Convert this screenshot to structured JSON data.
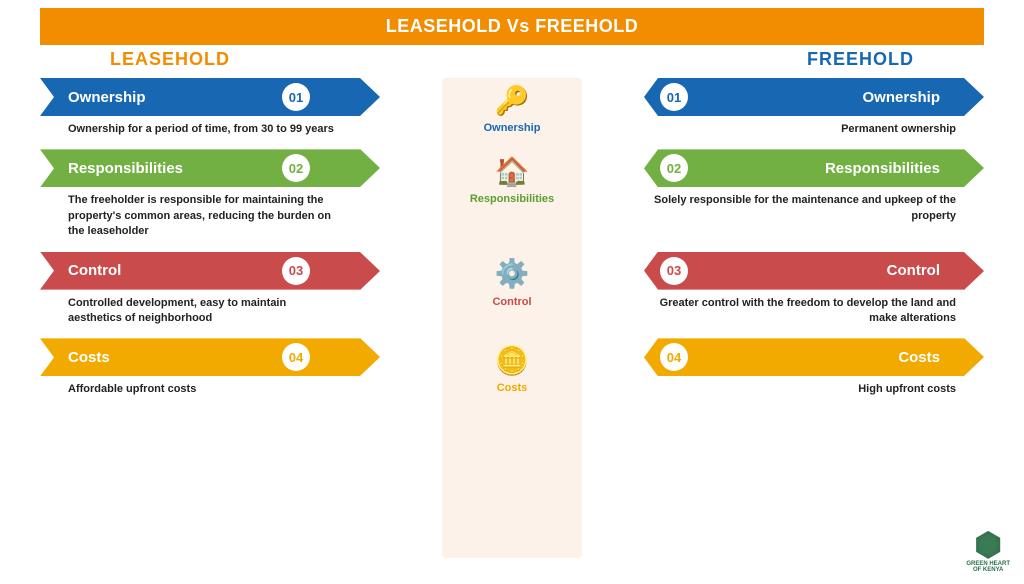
{
  "title": "LEASEHOLD Vs FREEHOLD",
  "left_heading": "LEASEHOLD",
  "right_heading": "FREEHOLD",
  "heading_colors": {
    "left": "#f28c00",
    "right": "#1767b3"
  },
  "title_bar_color": "#f28c00",
  "center_strip_color": "#fdf2e9",
  "rows": [
    {
      "num": "01",
      "label": "Ownership",
      "color": "#1767b3",
      "icon_color": "#1767b3",
      "icon_glyph": "🔑",
      "left_desc": "Ownership for a period of time, from 30 to 99 years",
      "right_desc": "Permanent ownership"
    },
    {
      "num": "02",
      "label": "Responsibilities",
      "color": "#73b043",
      "icon_color": "#5a9e2f",
      "icon_glyph": "🏠",
      "left_desc": "The freeholder is responsible for maintaining the property's common areas, reducing the burden on the leaseholder",
      "right_desc": "Solely responsible for the maintenance and upkeep of the property"
    },
    {
      "num": "03",
      "label": "Control",
      "color": "#c94b4b",
      "icon_color": "#c94b4b",
      "icon_glyph": "⚙️",
      "left_desc": "Controlled development, easy to maintain aesthetics of neighborhood",
      "right_desc": "Greater control with the freedom to develop the land and make alterations"
    },
    {
      "num": "04",
      "label": "Costs",
      "color": "#f2a900",
      "icon_color": "#f2a900",
      "icon_glyph": "🪙",
      "left_desc": "Affordable upfront costs",
      "right_desc": "High upfront costs"
    }
  ],
  "logo": {
    "line1": "GREEN HEART",
    "line2": "OF KENYA"
  },
  "typography": {
    "title_fontsize": 18,
    "heading_fontsize": 18,
    "arrow_fontsize": 15,
    "desc_fontsize": 11,
    "icon_label_fontsize": 11
  }
}
